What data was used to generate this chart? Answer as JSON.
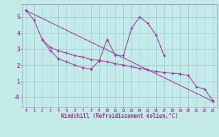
{
  "xlabel": "Windchill (Refroidissement éolien,°C)",
  "bg_color": "#c5eaea",
  "line_color": "#993399",
  "grid_color": "#99cccc",
  "curve1_x": [
    0,
    1,
    2,
    3,
    4,
    5,
    6,
    7,
    8,
    9,
    10,
    11,
    12,
    13,
    14,
    15,
    16,
    17
  ],
  "curve1_y": [
    5.4,
    4.8,
    3.6,
    2.9,
    2.4,
    2.2,
    2.0,
    1.85,
    1.75,
    2.25,
    3.6,
    2.6,
    2.6,
    4.3,
    5.0,
    4.6,
    3.9,
    2.6
  ],
  "curve2_x": [
    0,
    23
  ],
  "curve2_y": [
    5.4,
    -0.25
  ],
  "curve3_x": [
    2,
    3,
    4,
    5,
    6,
    7,
    8,
    9,
    10,
    11,
    12,
    13,
    14,
    15,
    16,
    17,
    18,
    19,
    20,
    21,
    22,
    23
  ],
  "curve3_y": [
    3.6,
    3.1,
    2.9,
    2.75,
    2.6,
    2.5,
    2.35,
    2.3,
    2.2,
    2.1,
    2.0,
    1.9,
    1.8,
    1.7,
    1.6,
    1.55,
    1.5,
    1.45,
    1.35,
    0.65,
    0.5,
    -0.2
  ],
  "ylim": [
    -0.6,
    5.8
  ],
  "xlim": [
    -0.5,
    23.5
  ],
  "yticks": [
    0,
    1,
    2,
    3,
    4,
    5
  ],
  "ytick_labels": [
    "-0",
    "1",
    "2",
    "3",
    "4",
    "5"
  ]
}
